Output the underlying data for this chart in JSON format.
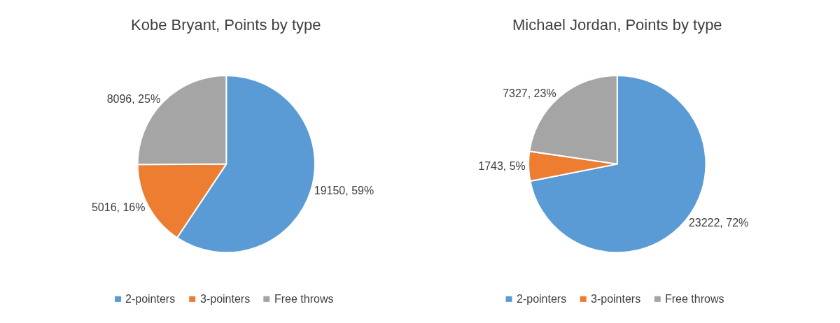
{
  "chart_data": [
    {
      "type": "pie",
      "title": "Kobe Bryant, Points by type",
      "categories": [
        "2-pointers",
        "3-pointers",
        "Free throws"
      ],
      "values": [
        19150,
        5016,
        8096
      ],
      "colors": [
        "#5b9bd5",
        "#ed7d31",
        "#a5a5a5"
      ],
      "value_labels": [
        "19150, 59%",
        "5016, 16%",
        "8096, 25%"
      ],
      "legend": "bottom"
    },
    {
      "type": "pie",
      "title": "Michael Jordan, Points by type",
      "categories": [
        "2-pointers",
        "3-pointers",
        "Free throws"
      ],
      "values": [
        23222,
        1743,
        7327
      ],
      "colors": [
        "#5b9bd5",
        "#ed7d31",
        "#a5a5a5"
      ],
      "value_labels": [
        "23222, 72%",
        "1743, 5%",
        "7327, 23%"
      ],
      "legend": "bottom"
    }
  ]
}
